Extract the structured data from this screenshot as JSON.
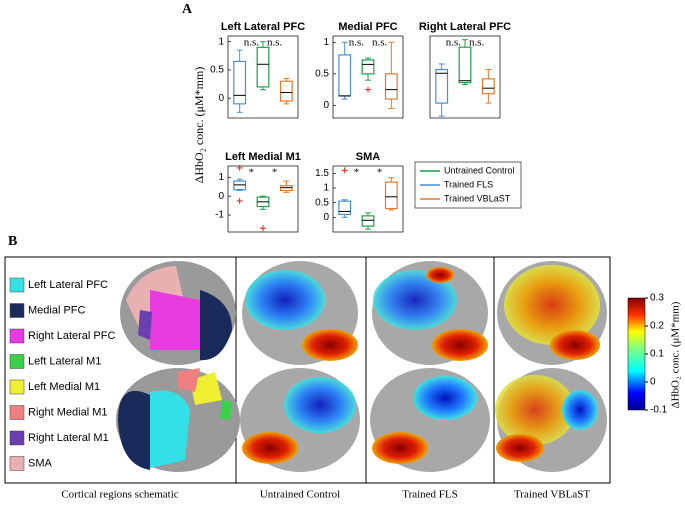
{
  "panel_a_label": "A",
  "panel_b_label": "B",
  "y_label": "ΔHbO₂ conc. (μM*mm)",
  "chart_data": [
    {
      "type": "box",
      "title": "Left Lateral PFC",
      "ylim": [
        -0.35,
        1.1
      ],
      "yticks": [
        0,
        0.5,
        1
      ],
      "annotations": [
        "n.s.",
        "n.s."
      ],
      "series": [
        {
          "name": "Trained FLS",
          "color": "#4a8fd0",
          "box": [
            -0.25,
            -0.1,
            0.05,
            0.65,
            0.85
          ],
          "outliers": []
        },
        {
          "name": "Untrained Control",
          "color": "#1f9e4a",
          "box": [
            0.15,
            0.2,
            0.6,
            0.9,
            1.0
          ],
          "outliers": []
        },
        {
          "name": "Trained VBLaST",
          "color": "#e07a2a",
          "box": [
            -0.1,
            -0.05,
            0.1,
            0.3,
            0.35
          ],
          "outliers": []
        }
      ]
    },
    {
      "type": "box",
      "title": "Medial PFC",
      "ylim": [
        -0.2,
        1.1
      ],
      "yticks": [
        0,
        0.5,
        1
      ],
      "annotations": [
        "n.s.",
        "n.s."
      ],
      "series": [
        {
          "name": "Trained FLS",
          "color": "#4a8fd0",
          "box": [
            0.1,
            0.15,
            0.15,
            0.8,
            1.0
          ],
          "outliers": []
        },
        {
          "name": "Untrained Control",
          "color": "#1f9e4a",
          "box": [
            0.4,
            0.5,
            0.65,
            0.72,
            0.75
          ],
          "outliers": [
            0.25
          ]
        },
        {
          "name": "Trained VBLaST",
          "color": "#e07a2a",
          "box": [
            -0.05,
            0.1,
            0.25,
            0.5,
            1.0
          ],
          "outliers": []
        }
      ]
    },
    {
      "type": "box",
      "title": "Right Lateral PFC",
      "ylim": [
        -0.6,
        1.6
      ],
      "annotations": [
        "n.s.",
        "n.s."
      ],
      "series": [
        {
          "name": "Trained FLS",
          "color": "#4a8fd0",
          "box": [
            -0.55,
            -0.2,
            0.6,
            0.7,
            0.85
          ],
          "outliers": []
        },
        {
          "name": "Untrained Control",
          "color": "#1f9e4a",
          "box": [
            0.3,
            0.35,
            0.4,
            1.3,
            1.5
          ],
          "outliers": []
        },
        {
          "name": "Trained VBLaST",
          "color": "#e07a2a",
          "box": [
            -0.2,
            0.05,
            0.2,
            0.45,
            0.7
          ],
          "outliers": []
        }
      ]
    },
    {
      "type": "box",
      "title": "Left Medial M1",
      "ylim": [
        -1.9,
        1.6
      ],
      "yticks": [
        -1,
        0,
        1
      ],
      "annotations": [
        "*",
        "*"
      ],
      "series": [
        {
          "name": "Trained FLS",
          "color": "#4a8fd0",
          "box": [
            0.3,
            0.35,
            0.6,
            0.8,
            0.9
          ],
          "outliers": [
            1.5,
            -0.25
          ]
        },
        {
          "name": "Untrained Control",
          "color": "#1f9e4a",
          "box": [
            -0.7,
            -0.55,
            -0.3,
            -0.05,
            0
          ],
          "outliers": [
            -1.7
          ]
        },
        {
          "name": "Trained VBLaST",
          "color": "#e07a2a",
          "box": [
            0.2,
            0.3,
            0.45,
            0.55,
            0.8
          ],
          "outliers": []
        }
      ]
    },
    {
      "type": "box",
      "title": "SMA",
      "ylim": [
        -0.5,
        1.75
      ],
      "yticks": [
        0,
        0.5,
        1,
        1.5
      ],
      "annotations": [
        "*",
        "*"
      ],
      "series": [
        {
          "name": "Trained FLS",
          "color": "#4a8fd0",
          "box": [
            0,
            0.1,
            0.2,
            0.55,
            0.6
          ],
          "outliers": [
            1.6
          ]
        },
        {
          "name": "Untrained Control",
          "color": "#1f9e4a",
          "box": [
            -0.4,
            -0.3,
            -0.1,
            0.05,
            0.15
          ],
          "outliers": []
        },
        {
          "name": "Trained VBLaST",
          "color": "#e07a2a",
          "box": [
            0.25,
            0.3,
            0.7,
            1.2,
            1.35
          ],
          "outliers": []
        }
      ]
    }
  ],
  "regions": [
    {
      "name": "Left Lateral PFC",
      "color": "#33e0e6"
    },
    {
      "name": "Medial PFC",
      "color": "#1a2a5a"
    },
    {
      "name": "Right Lateral PFC",
      "color": "#e63ce0"
    },
    {
      "name": "Left Lateral M1",
      "color": "#3ad04a"
    },
    {
      "name": "Left Medial M1",
      "color": "#f0ee30"
    },
    {
      "name": "Right Medial M1",
      "color": "#f08080"
    },
    {
      "name": "Right Lateral M1",
      "color": "#6a3fb0"
    },
    {
      "name": "SMA",
      "color": "#e8b0b0"
    }
  ],
  "columns": [
    "Cortical regions schematic",
    "Untrained Control",
    "Trained FLS",
    "Trained VBLaST"
  ],
  "colorbar": {
    "lim": [
      -0.1,
      0.3
    ],
    "ticks": [
      -0.1,
      0,
      0.1,
      0.2,
      0.3
    ]
  }
}
